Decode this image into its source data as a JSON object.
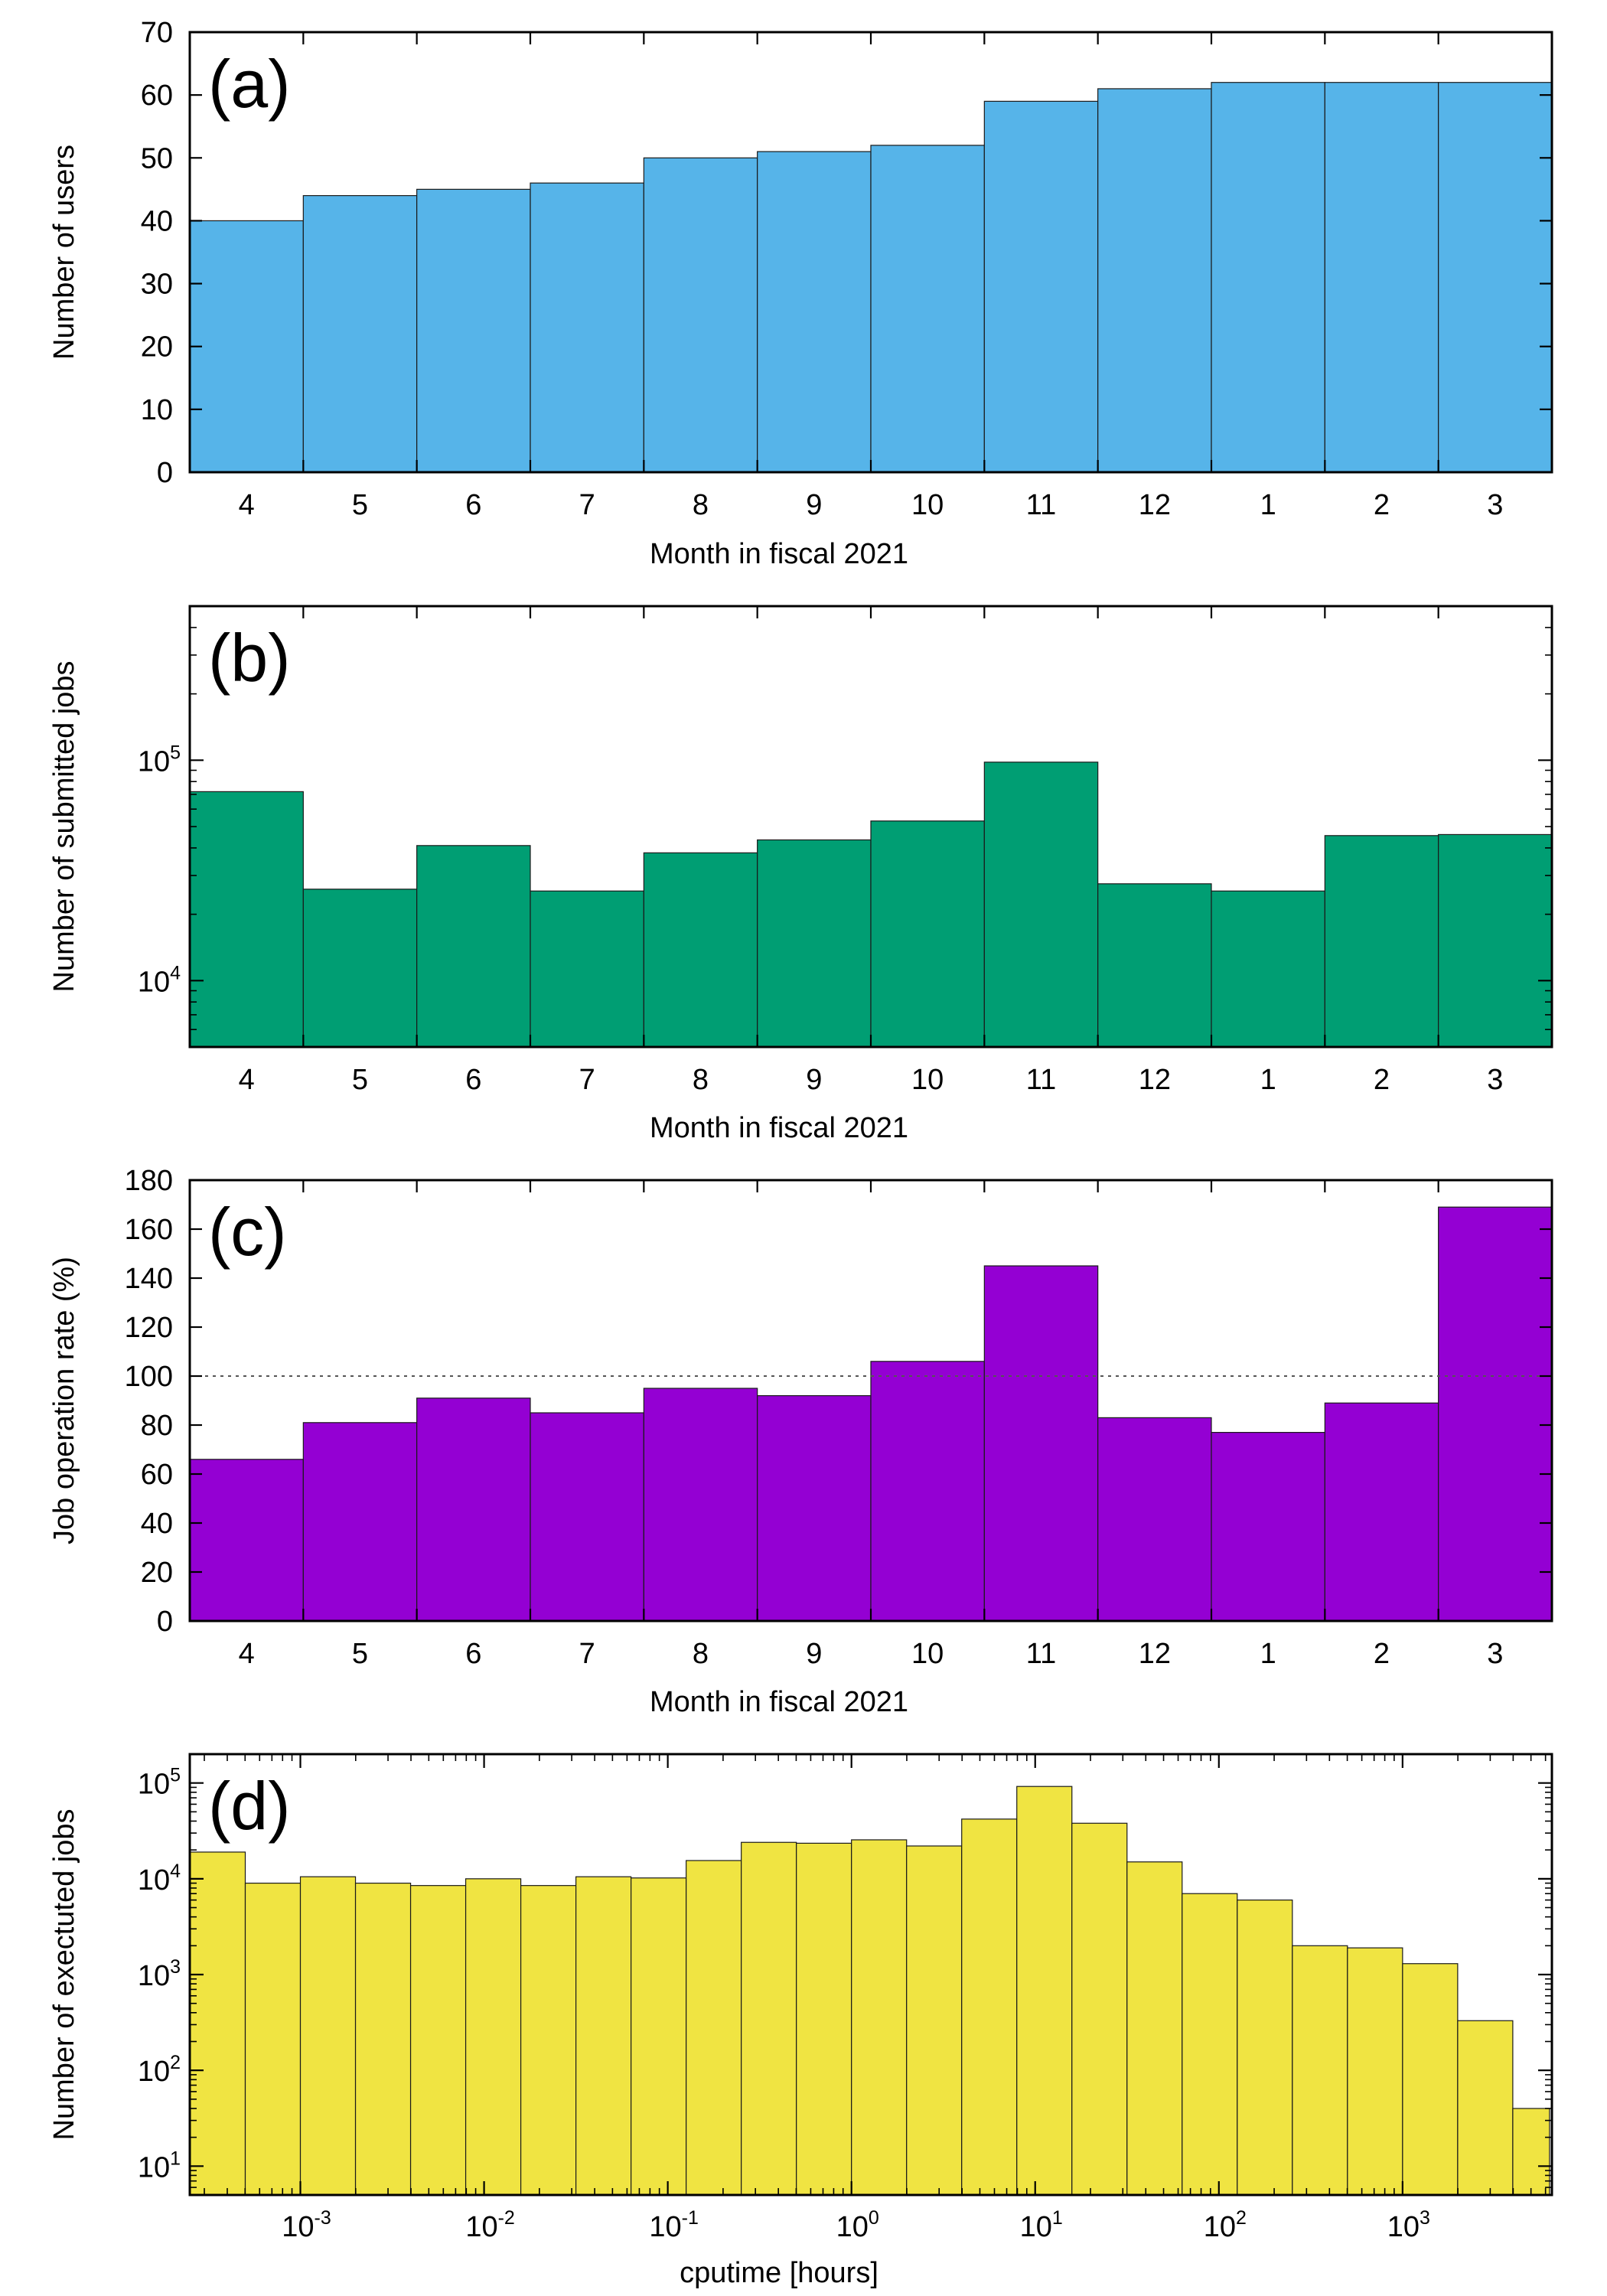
{
  "chart_data": [
    {
      "panel": "(a)",
      "type": "bar",
      "categories": [
        "4",
        "5",
        "6",
        "7",
        "8",
        "9",
        "10",
        "11",
        "12",
        "1",
        "2",
        "3"
      ],
      "values": [
        40,
        44,
        45,
        46,
        50,
        51,
        52,
        59,
        61,
        62,
        62,
        62
      ],
      "xlabel": "Month in fiscal 2021",
      "ylabel": "Number of users",
      "ylim": [
        0,
        70
      ],
      "yscale": "linear",
      "yticks": [
        0,
        10,
        20,
        30,
        40,
        50,
        60,
        70
      ],
      "color": "#56b4e9",
      "grid": false
    },
    {
      "panel": "(b)",
      "type": "bar",
      "categories": [
        "4",
        "5",
        "6",
        "7",
        "8",
        "9",
        "10",
        "11",
        "12",
        "1",
        "2",
        "3"
      ],
      "values": [
        72000,
        26000,
        41000,
        25500,
        38000,
        43500,
        53000,
        98000,
        27500,
        25500,
        45500,
        46000
      ],
      "xlabel": "Month in fiscal 2021",
      "ylabel": "Number of submitted jobs",
      "ylim": [
        5000,
        500000
      ],
      "yscale": "log",
      "yticks": [
        {
          "base": "10",
          "exp": "4",
          "value": 10000
        },
        {
          "base": "10",
          "exp": "5",
          "value": 100000
        }
      ],
      "color": "#009e73",
      "grid": false
    },
    {
      "panel": "(c)",
      "type": "bar",
      "categories": [
        "4",
        "5",
        "6",
        "7",
        "8",
        "9",
        "10",
        "11",
        "12",
        "1",
        "2",
        "3"
      ],
      "values": [
        66,
        81,
        91,
        85,
        95,
        92,
        106,
        145,
        83,
        77,
        89,
        169
      ],
      "xlabel": "Month in fiscal 2021",
      "ylabel": "Job operation rate (%)",
      "ylim": [
        0,
        180
      ],
      "yscale": "linear",
      "yticks": [
        0,
        20,
        40,
        60,
        80,
        100,
        120,
        140,
        160,
        180
      ],
      "reference_line": 100,
      "color": "#9400d3",
      "grid": false
    },
    {
      "panel": "(d)",
      "type": "bar",
      "bins_log10_edges": [
        -3.6,
        -3.3,
        -3.0,
        -2.7,
        -2.4,
        -2.1,
        -1.8,
        -1.5,
        -1.2,
        -0.9,
        -0.6,
        -0.3,
        0.0,
        0.3,
        0.6,
        0.9,
        1.2,
        1.5,
        1.8,
        2.1,
        2.4,
        2.7,
        3.0,
        3.3,
        3.6,
        3.8
      ],
      "values": [
        19000,
        9000,
        10500,
        9000,
        8500,
        10000,
        8500,
        10500,
        10200,
        15500,
        24000,
        23500,
        25500,
        22000,
        42000,
        92000,
        38000,
        15000,
        7000,
        6000,
        2000,
        1900,
        1300,
        330,
        40
      ],
      "xlabel": "cputime [hours]",
      "ylabel": "Number of exectuted jobs",
      "xscale": "log",
      "xlim": [
        0.00025,
        6500
      ],
      "xticks": [
        {
          "base": "10",
          "exp": "-3",
          "value": 0.001
        },
        {
          "base": "10",
          "exp": "-2",
          "value": 0.01
        },
        {
          "base": "10",
          "exp": "-1",
          "value": 0.1
        },
        {
          "base": "10",
          "exp": "0",
          "value": 1
        },
        {
          "base": "10",
          "exp": "1",
          "value": 10
        },
        {
          "base": "10",
          "exp": "2",
          "value": 100
        },
        {
          "base": "10",
          "exp": "3",
          "value": 1000
        }
      ],
      "yscale": "log",
      "ylim": [
        5,
        200000
      ],
      "yticks": [
        {
          "base": "10",
          "exp": "1",
          "value": 10
        },
        {
          "base": "10",
          "exp": "2",
          "value": 100
        },
        {
          "base": "10",
          "exp": "3",
          "value": 1000
        },
        {
          "base": "10",
          "exp": "4",
          "value": 10000
        },
        {
          "base": "10",
          "exp": "5",
          "value": 100000
        }
      ],
      "color": "#f0e442",
      "grid": false
    }
  ]
}
